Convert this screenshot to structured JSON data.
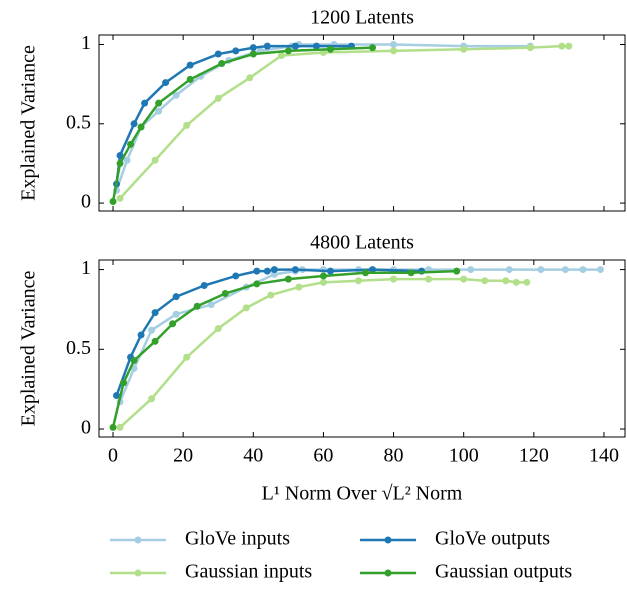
{
  "chart_data": [
    {
      "type": "line",
      "title": "1200 Latents",
      "ylabel": "Explained Variance",
      "xlim": [
        -4,
        146
      ],
      "ylim": [
        -0.05,
        1.06
      ],
      "xticks": [
        0,
        20,
        40,
        60,
        80,
        100,
        120,
        140
      ],
      "yticks": [
        0,
        0.5,
        1
      ],
      "series": [
        {
          "color": "#a6cee3",
          "x": [
            1,
            4,
            8,
            13,
            18,
            25,
            33,
            42,
            51,
            53,
            63,
            80,
            100,
            119
          ],
          "values": [
            0.08,
            0.27,
            0.48,
            0.58,
            0.68,
            0.8,
            0.9,
            0.96,
            0.99,
            1.0,
            1.0,
            1.0,
            0.99,
            0.99
          ]
        },
        {
          "color": "#b2df8a",
          "x": [
            2,
            12,
            21,
            30,
            39,
            48,
            60,
            80,
            100,
            119,
            128,
            130
          ],
          "values": [
            0.03,
            0.27,
            0.49,
            0.66,
            0.79,
            0.93,
            0.95,
            0.96,
            0.97,
            0.98,
            0.99,
            0.99
          ]
        },
        {
          "color": "#1f78b4",
          "x": [
            1,
            2,
            6,
            9,
            15,
            22,
            30,
            35,
            40,
            44,
            52,
            58,
            68
          ],
          "values": [
            0.12,
            0.3,
            0.5,
            0.63,
            0.76,
            0.87,
            0.94,
            0.96,
            0.98,
            0.99,
            0.99,
            0.99,
            0.99
          ]
        },
        {
          "color": "#33a02c",
          "x": [
            0,
            2,
            5,
            8,
            13,
            22,
            31,
            40,
            50,
            62,
            74
          ],
          "values": [
            0.01,
            0.25,
            0.37,
            0.48,
            0.63,
            0.78,
            0.88,
            0.94,
            0.96,
            0.97,
            0.98
          ]
        }
      ]
    },
    {
      "type": "line",
      "title": "4800 Latents",
      "ylabel": "Explained Variance",
      "xlabel": "L¹ Norm Over √L² Norm",
      "xlim": [
        -4,
        146
      ],
      "ylim": [
        -0.05,
        1.06
      ],
      "xticks": [
        0,
        20,
        40,
        60,
        80,
        100,
        120,
        140
      ],
      "yticks": [
        0,
        0.5,
        1
      ],
      "series": [
        {
          "name": "GloVe inputs",
          "color": "#a6cee3",
          "x": [
            2,
            6,
            11,
            18,
            28,
            38,
            46,
            52,
            54,
            60,
            70,
            80,
            90,
            102,
            113,
            122,
            129,
            134,
            139
          ],
          "values": [
            0.17,
            0.38,
            0.62,
            0.72,
            0.78,
            0.89,
            0.97,
            0.99,
            1.0,
            1.0,
            1.0,
            1.0,
            1.0,
            1.0,
            1.0,
            1.0,
            1.0,
            1.0,
            1.0
          ]
        },
        {
          "name": "Gaussian inputs",
          "color": "#b2df8a",
          "x": [
            2,
            11,
            21,
            30,
            38,
            45,
            53,
            60,
            70,
            80,
            90,
            100,
            106,
            112,
            115,
            118
          ],
          "values": [
            0.01,
            0.19,
            0.45,
            0.63,
            0.76,
            0.84,
            0.89,
            0.92,
            0.93,
            0.94,
            0.94,
            0.94,
            0.93,
            0.93,
            0.92,
            0.92
          ]
        },
        {
          "name": "GloVe outputs",
          "color": "#1f78b4",
          "x": [
            1,
            5,
            8,
            12,
            18,
            26,
            35,
            41,
            44,
            46,
            52,
            62,
            74,
            88
          ],
          "values": [
            0.21,
            0.45,
            0.59,
            0.73,
            0.83,
            0.9,
            0.96,
            0.99,
            0.99,
            1.0,
            1.0,
            0.99,
            1.0,
            0.99
          ]
        },
        {
          "name": "Gaussian outputs",
          "color": "#33a02c",
          "x": [
            0,
            3,
            6,
            12,
            17,
            24,
            32,
            41,
            50,
            60,
            72,
            85,
            98
          ],
          "values": [
            0.01,
            0.29,
            0.43,
            0.55,
            0.66,
            0.77,
            0.85,
            0.91,
            0.94,
            0.96,
            0.98,
            0.98,
            0.99
          ]
        }
      ]
    }
  ]
}
